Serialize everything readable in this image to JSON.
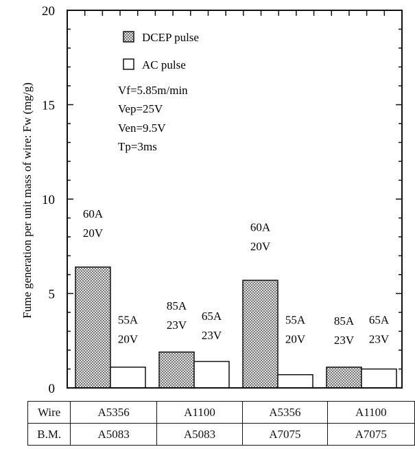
{
  "chart_data": {
    "type": "bar",
    "ylabel": "Fume generation per unit mass of wire: Fw (mg/g)",
    "ylim": [
      0,
      20
    ],
    "yticks": [
      "0",
      "5",
      "10",
      "15",
      "20"
    ],
    "legend": [
      {
        "name": "DCEP pulse",
        "fill": "hatched"
      },
      {
        "name": "AC pulse",
        "fill": "open"
      }
    ],
    "conditions": [
      "Vf=5.85m/min",
      "Vep=25V",
      "Ven=9.5V",
      "Tp=3ms"
    ],
    "series": [
      {
        "name": "DCEP pulse",
        "values": [
          6.4,
          1.9,
          5.7,
          1.1
        ]
      },
      {
        "name": "AC pulse",
        "values": [
          1.1,
          1.4,
          0.7,
          1.0
        ]
      }
    ],
    "bar_labels": {
      "DCEP pulse": [
        [
          "60A",
          "20V"
        ],
        [
          "85A",
          "23V"
        ],
        [
          "60A",
          "20V"
        ],
        [
          "85A",
          "23V"
        ]
      ],
      "AC pulse": [
        [
          "55A",
          "20V"
        ],
        [
          "65A",
          "23V"
        ],
        [
          "55A",
          "20V"
        ],
        [
          "65A",
          "23V"
        ]
      ]
    }
  },
  "table": {
    "rows": [
      {
        "label": "Wire",
        "cells": [
          "A5356",
          "A1100",
          "A5356",
          "A1100"
        ]
      },
      {
        "label": "B.M.",
        "cells": [
          "A5083",
          "A5083",
          "A7075",
          "A7075"
        ]
      }
    ]
  },
  "colors": {
    "hatch": "#8a8a8a",
    "axis": "#111111"
  }
}
